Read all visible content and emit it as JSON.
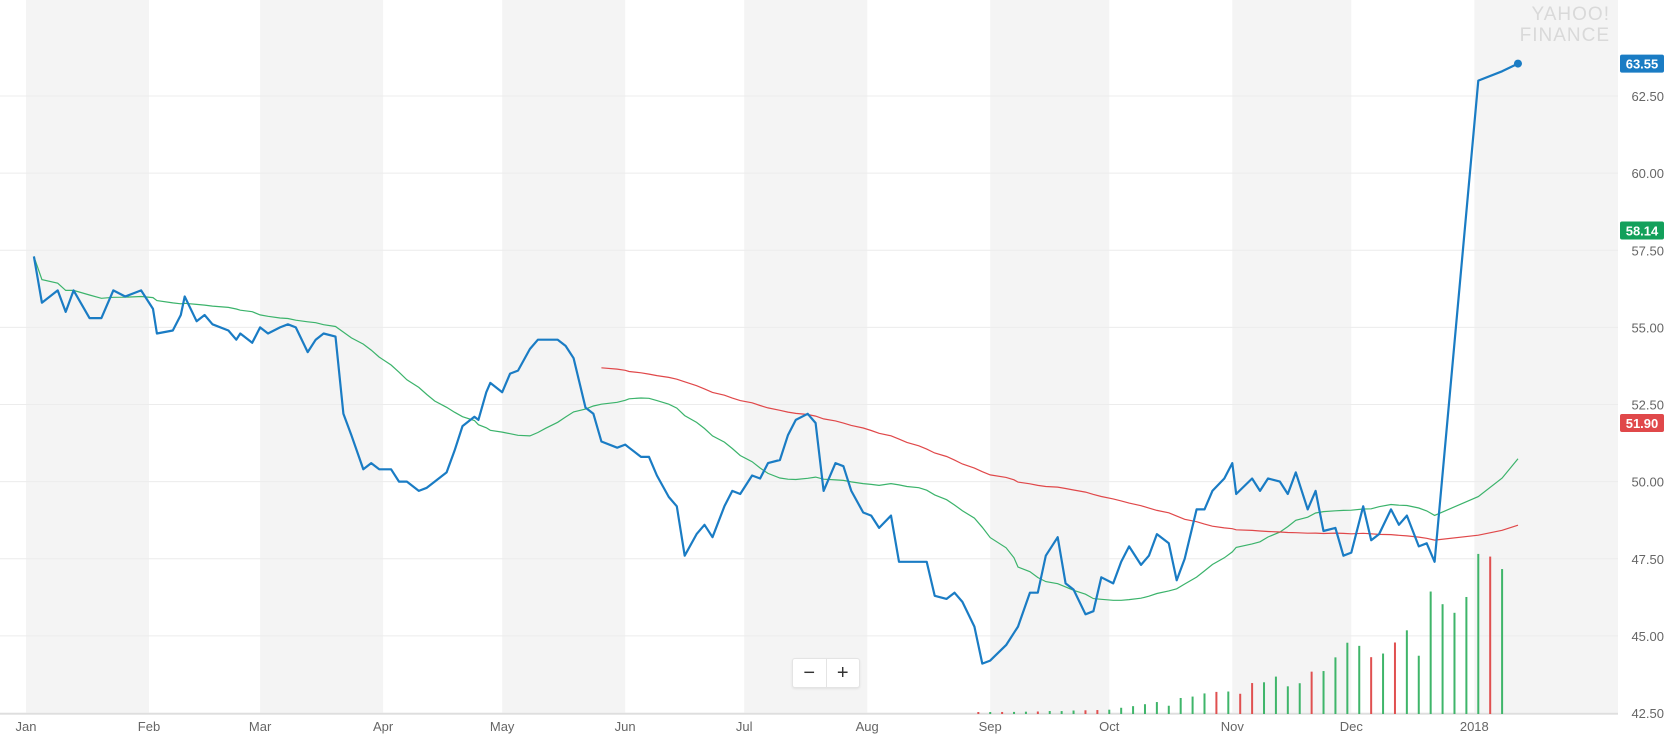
{
  "watermark": {
    "line1": "YAHOO!",
    "line2": "FINANCE"
  },
  "zoom": {
    "minus": "−",
    "plus": "+"
  },
  "chart_data": {
    "type": "line",
    "title": "",
    "xlabel": "",
    "ylabel": "",
    "ylim": [
      42.5,
      64.0
    ],
    "x_range": [
      "2017-01-03",
      "2018-01-12"
    ],
    "y_ticks": [
      42.5,
      45.0,
      47.5,
      50.0,
      52.5,
      55.0,
      57.5,
      60.0,
      62.5
    ],
    "x_ticks": [
      {
        "label": "Jan",
        "date": "2017-01-01"
      },
      {
        "label": "Feb",
        "date": "2017-02-01"
      },
      {
        "label": "Mar",
        "date": "2017-03-01"
      },
      {
        "label": "Apr",
        "date": "2017-04-01"
      },
      {
        "label": "May",
        "date": "2017-05-01"
      },
      {
        "label": "Jun",
        "date": "2017-06-01"
      },
      {
        "label": "Jul",
        "date": "2017-07-01"
      },
      {
        "label": "Aug",
        "date": "2017-08-01"
      },
      {
        "label": "Sep",
        "date": "2017-09-01"
      },
      {
        "label": "Oct",
        "date": "2017-10-01"
      },
      {
        "label": "Nov",
        "date": "2017-11-01"
      },
      {
        "label": "Dec",
        "date": "2017-12-01"
      },
      {
        "label": "2018",
        "date": "2018-01-01"
      }
    ],
    "grid": true,
    "series": [
      {
        "role": "price",
        "color": "#1a7cc4",
        "last_label": "63.55",
        "label_bg": "#1a7cc4",
        "points": [
          [
            "2017-01-03",
            57.3
          ],
          [
            "2017-01-05",
            55.8
          ],
          [
            "2017-01-09",
            56.2
          ],
          [
            "2017-01-11",
            55.5
          ],
          [
            "2017-01-13",
            56.2
          ],
          [
            "2017-01-17",
            55.3
          ],
          [
            "2017-01-20",
            55.3
          ],
          [
            "2017-01-23",
            56.2
          ],
          [
            "2017-01-26",
            56.0
          ],
          [
            "2017-01-30",
            56.2
          ],
          [
            "2017-02-02",
            55.6
          ],
          [
            "2017-02-03",
            54.8
          ],
          [
            "2017-02-07",
            54.9
          ],
          [
            "2017-02-09",
            55.4
          ],
          [
            "2017-02-10",
            56.0
          ],
          [
            "2017-02-13",
            55.2
          ],
          [
            "2017-02-15",
            55.4
          ],
          [
            "2017-02-17",
            55.1
          ],
          [
            "2017-02-21",
            54.9
          ],
          [
            "2017-02-23",
            54.6
          ],
          [
            "2017-02-24",
            54.8
          ],
          [
            "2017-02-27",
            54.5
          ],
          [
            "2017-03-01",
            55.0
          ],
          [
            "2017-03-03",
            54.8
          ],
          [
            "2017-03-06",
            55.0
          ],
          [
            "2017-03-08",
            55.1
          ],
          [
            "2017-03-10",
            55.0
          ],
          [
            "2017-03-13",
            54.2
          ],
          [
            "2017-03-15",
            54.6
          ],
          [
            "2017-03-17",
            54.8
          ],
          [
            "2017-03-20",
            54.7
          ],
          [
            "2017-03-22",
            52.2
          ],
          [
            "2017-03-24",
            51.5
          ],
          [
            "2017-03-27",
            50.4
          ],
          [
            "2017-03-29",
            50.6
          ],
          [
            "2017-03-31",
            50.4
          ],
          [
            "2017-04-03",
            50.4
          ],
          [
            "2017-04-05",
            50.0
          ],
          [
            "2017-04-07",
            50.0
          ],
          [
            "2017-04-10",
            49.7
          ],
          [
            "2017-04-12",
            49.8
          ],
          [
            "2017-04-14",
            50.0
          ],
          [
            "2017-04-17",
            50.3
          ],
          [
            "2017-04-19",
            51.0
          ],
          [
            "2017-04-21",
            51.8
          ],
          [
            "2017-04-24",
            52.1
          ],
          [
            "2017-04-25",
            52.0
          ],
          [
            "2017-04-27",
            52.9
          ],
          [
            "2017-04-28",
            53.2
          ],
          [
            "2017-05-01",
            52.9
          ],
          [
            "2017-05-03",
            53.5
          ],
          [
            "2017-05-05",
            53.6
          ],
          [
            "2017-05-08",
            54.3
          ],
          [
            "2017-05-10",
            54.6
          ],
          [
            "2017-05-12",
            54.6
          ],
          [
            "2017-05-15",
            54.6
          ],
          [
            "2017-05-17",
            54.4
          ],
          [
            "2017-05-19",
            54.0
          ],
          [
            "2017-05-22",
            52.4
          ],
          [
            "2017-05-24",
            52.2
          ],
          [
            "2017-05-26",
            51.3
          ],
          [
            "2017-05-30",
            51.1
          ],
          [
            "2017-06-01",
            51.2
          ],
          [
            "2017-06-02",
            51.1
          ],
          [
            "2017-06-05",
            50.8
          ],
          [
            "2017-06-07",
            50.8
          ],
          [
            "2017-06-09",
            50.2
          ],
          [
            "2017-06-12",
            49.5
          ],
          [
            "2017-06-14",
            49.2
          ],
          [
            "2017-06-16",
            47.6
          ],
          [
            "2017-06-19",
            48.3
          ],
          [
            "2017-06-21",
            48.6
          ],
          [
            "2017-06-23",
            48.2
          ],
          [
            "2017-06-26",
            49.2
          ],
          [
            "2017-06-28",
            49.7
          ],
          [
            "2017-06-30",
            49.6
          ],
          [
            "2017-07-03",
            50.2
          ],
          [
            "2017-07-05",
            50.1
          ],
          [
            "2017-07-07",
            50.6
          ],
          [
            "2017-07-10",
            50.7
          ],
          [
            "2017-07-12",
            51.5
          ],
          [
            "2017-07-14",
            52.0
          ],
          [
            "2017-07-17",
            52.2
          ],
          [
            "2017-07-19",
            51.9
          ],
          [
            "2017-07-21",
            49.7
          ],
          [
            "2017-07-24",
            50.6
          ],
          [
            "2017-07-26",
            50.5
          ],
          [
            "2017-07-28",
            49.7
          ],
          [
            "2017-07-31",
            49.0
          ],
          [
            "2017-08-02",
            48.9
          ],
          [
            "2017-08-04",
            48.5
          ],
          [
            "2017-08-07",
            48.9
          ],
          [
            "2017-08-09",
            47.4
          ],
          [
            "2017-08-11",
            47.4
          ],
          [
            "2017-08-14",
            47.4
          ],
          [
            "2017-08-16",
            47.4
          ],
          [
            "2017-08-18",
            46.3
          ],
          [
            "2017-08-21",
            46.2
          ],
          [
            "2017-08-23",
            46.4
          ],
          [
            "2017-08-25",
            46.1
          ],
          [
            "2017-08-28",
            45.3
          ],
          [
            "2017-08-30",
            44.1
          ],
          [
            "2017-09-01",
            44.2
          ],
          [
            "2017-09-05",
            44.7
          ],
          [
            "2017-09-07",
            45.1
          ],
          [
            "2017-09-08",
            45.3
          ],
          [
            "2017-09-11",
            46.4
          ],
          [
            "2017-09-13",
            46.4
          ],
          [
            "2017-09-15",
            47.6
          ],
          [
            "2017-09-18",
            48.2
          ],
          [
            "2017-09-20",
            46.7
          ],
          [
            "2017-09-22",
            46.5
          ],
          [
            "2017-09-25",
            45.7
          ],
          [
            "2017-09-27",
            45.8
          ],
          [
            "2017-09-29",
            46.9
          ],
          [
            "2017-10-02",
            46.7
          ],
          [
            "2017-10-04",
            47.4
          ],
          [
            "2017-10-06",
            47.9
          ],
          [
            "2017-10-09",
            47.3
          ],
          [
            "2017-10-11",
            47.6
          ],
          [
            "2017-10-13",
            48.3
          ],
          [
            "2017-10-16",
            48.0
          ],
          [
            "2017-10-18",
            46.8
          ],
          [
            "2017-10-20",
            47.5
          ],
          [
            "2017-10-23",
            49.1
          ],
          [
            "2017-10-25",
            49.1
          ],
          [
            "2017-10-27",
            49.7
          ],
          [
            "2017-10-30",
            50.1
          ],
          [
            "2017-11-01",
            50.6
          ],
          [
            "2017-11-02",
            49.6
          ],
          [
            "2017-11-06",
            50.1
          ],
          [
            "2017-11-08",
            49.7
          ],
          [
            "2017-11-10",
            50.1
          ],
          [
            "2017-11-13",
            50.0
          ],
          [
            "2017-11-15",
            49.6
          ],
          [
            "2017-11-17",
            50.3
          ],
          [
            "2017-11-20",
            49.1
          ],
          [
            "2017-11-22",
            49.7
          ],
          [
            "2017-11-24",
            48.4
          ],
          [
            "2017-11-27",
            48.5
          ],
          [
            "2017-11-29",
            47.6
          ],
          [
            "2017-12-01",
            47.7
          ],
          [
            "2017-12-04",
            49.2
          ],
          [
            "2017-12-06",
            48.1
          ],
          [
            "2017-12-08",
            48.3
          ],
          [
            "2017-12-11",
            49.1
          ],
          [
            "2017-12-13",
            48.6
          ],
          [
            "2017-12-15",
            48.9
          ],
          [
            "2017-12-18",
            47.9
          ],
          [
            "2017-12-20",
            48.0
          ],
          [
            "2017-12-22",
            47.4
          ],
          [
            "2018-01-02",
            63.0
          ],
          [
            "2018-01-08",
            63.3
          ],
          [
            "2018-01-12",
            63.55
          ]
        ]
      },
      {
        "role": "moving-average-50",
        "color": "#3bb36b",
        "last_label": "58.14",
        "label_bg": "#13a05b"
      },
      {
        "role": "moving-average-200",
        "color": "#e0484a",
        "last_label": "51.90",
        "label_bg": "#e0484a"
      }
    ]
  }
}
